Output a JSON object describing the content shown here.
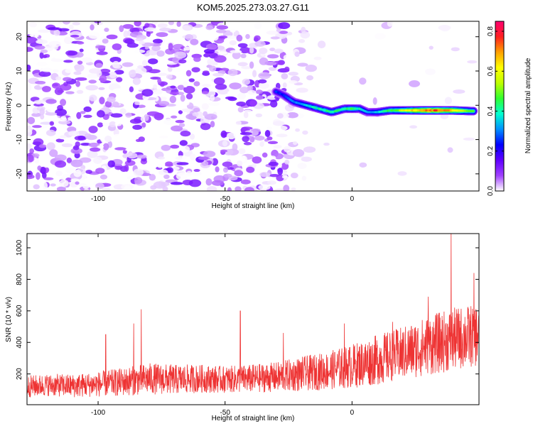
{
  "chart_data": [
    {
      "type": "heatmap",
      "title": "KOM5.2025.273.03.27.G11",
      "xlabel": "Height of straight line (km)",
      "ylabel": "Frequency (Hz)",
      "xlim": [
        -128,
        50
      ],
      "ylim": [
        -25,
        24.5
      ],
      "xticks": [
        -100,
        -50,
        0
      ],
      "xtick_labels": [
        "-100",
        "-50",
        "0"
      ],
      "yticks": [
        -20,
        -10,
        0,
        10,
        20
      ],
      "ytick_labels": [
        "-20",
        "-10",
        "0",
        "10",
        "20"
      ],
      "colorbar": {
        "label": "Normalized spectral amplitude",
        "range": [
          0,
          0.85
        ],
        "ticks": [
          0,
          0.2,
          0.4,
          0.6,
          0.8
        ],
        "tick_labels": [
          "0.0",
          "0.2",
          "0.4",
          "0.6",
          "0.8"
        ],
        "colors": [
          "#ffffff",
          "#a040ff",
          "#6000ff",
          "#0000ff",
          "#0090ff",
          "#00ffd0",
          "#30ff30",
          "#c0ff00",
          "#ffff00",
          "#ffa000",
          "#ff2020",
          "#ff0070"
        ]
      },
      "ridge": {
        "description": "dispersed signal track",
        "x": [
          -30,
          -27,
          -23,
          -18,
          -13,
          -8,
          -3,
          0,
          3,
          6,
          10,
          15,
          20,
          30,
          40,
          47
        ],
        "freq": [
          4,
          3,
          1,
          0,
          -1,
          -2,
          -1,
          -1,
          -1,
          -2,
          -2,
          -1.5,
          -1.5,
          -1.5,
          -1.5,
          -1.7
        ],
        "amplitude": [
          0.25,
          0.25,
          0.3,
          0.35,
          0.4,
          0.42,
          0.4,
          0.45,
          0.38,
          0.3,
          0.35,
          0.45,
          0.55,
          0.75,
          0.65,
          0.45
        ]
      },
      "noise_region_x": [
        -128,
        -25
      ],
      "noise_level_max": 0.15
    },
    {
      "type": "line",
      "xlabel": "Height of straight line (km)",
      "ylabel": "SNR (10 * v/v)",
      "xlim": [
        -128,
        50
      ],
      "ylim": [
        5,
        1090
      ],
      "xticks": [
        -100,
        -50,
        0
      ],
      "xtick_labels": [
        "-100",
        "-50",
        "0"
      ],
      "yticks": [
        200,
        400,
        600,
        800,
        1000
      ],
      "ytick_labels": [
        "200",
        "400",
        "600",
        "800",
        "1000"
      ],
      "series": [
        {
          "name": "SNR",
          "color": "#ee3333",
          "x": [
            -128,
            -120,
            -110,
            -100,
            -90,
            -80,
            -70,
            -60,
            -50,
            -40,
            -30,
            -20,
            -10,
            0,
            10,
            20,
            30,
            40,
            50
          ],
          "baseline": [
            120,
            130,
            125,
            135,
            150,
            170,
            165,
            170,
            165,
            170,
            180,
            200,
            220,
            250,
            290,
            330,
            380,
            420,
            450
          ],
          "spread": [
            70,
            70,
            75,
            80,
            90,
            100,
            95,
            90,
            85,
            90,
            95,
            110,
            120,
            140,
            160,
            170,
            190,
            200,
            200
          ],
          "spikes": [
            {
              "x": -83,
              "value": 610
            },
            {
              "x": -86,
              "value": 520
            },
            {
              "x": -97,
              "value": 450
            },
            {
              "x": -44,
              "value": 600
            },
            {
              "x": -27,
              "value": 460
            },
            {
              "x": -3,
              "value": 520
            },
            {
              "x": 16,
              "value": 530
            },
            {
              "x": 30,
              "value": 690
            },
            {
              "x": 39,
              "value": 1090
            },
            {
              "x": 48,
              "value": 840
            }
          ]
        }
      ]
    }
  ]
}
